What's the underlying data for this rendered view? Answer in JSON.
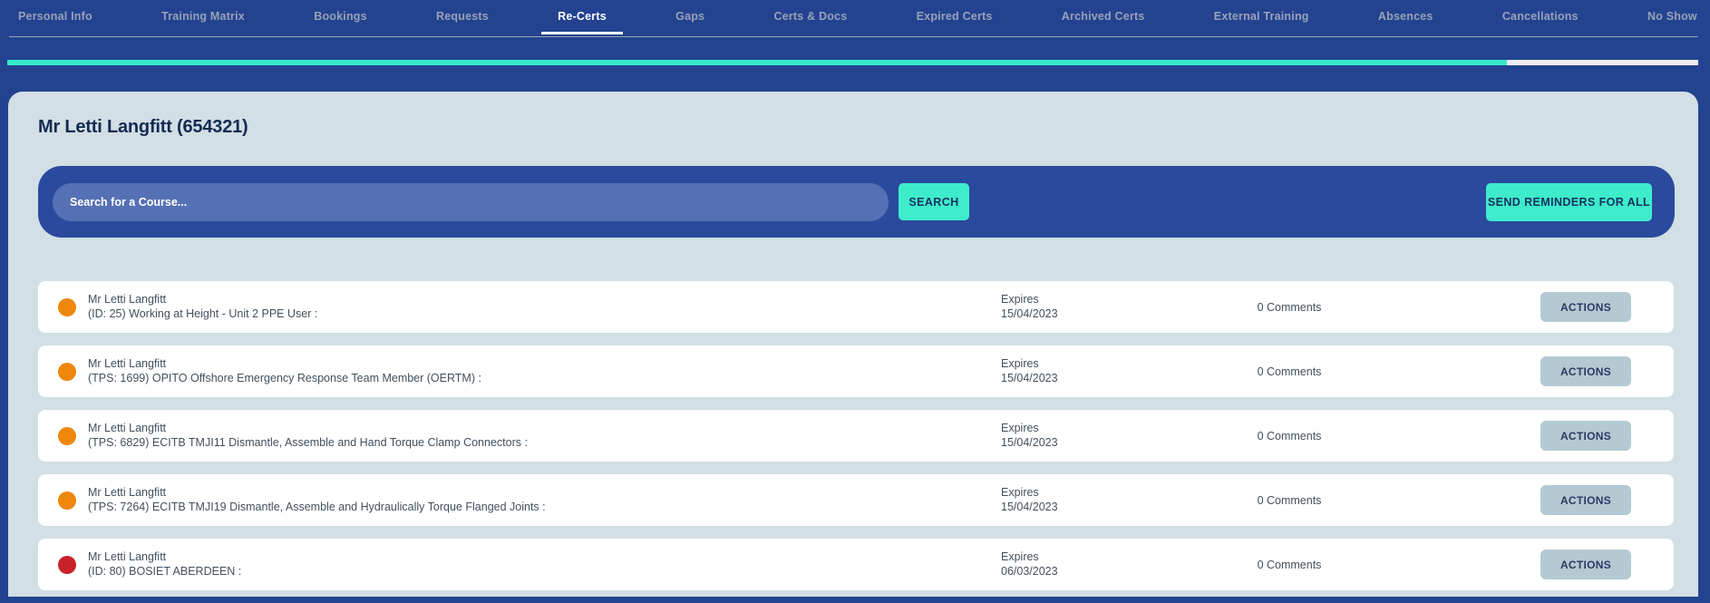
{
  "colors": {
    "chrome_blue": "#234391",
    "search_panel_blue": "#2a4a9e",
    "input_blue": "#5670b5",
    "accent_teal": "#35e9c9",
    "button_teal": "#3eeccb",
    "progress_remainder": "#edeaf3",
    "panel_bg": "#d2dfe4",
    "card_bg": "#ffffff",
    "status_amber": "#ef870d",
    "status_red": "#c92129",
    "actions_button_bg": "#b4cad2",
    "navy_text": "#132a52",
    "row_text": "#42505c",
    "inactive_tab": "#98a2b6"
  },
  "nav": {
    "tabs": [
      {
        "label": "Personal Info",
        "state": ""
      },
      {
        "label": "Training Matrix",
        "state": ""
      },
      {
        "label": "Bookings",
        "state": ""
      },
      {
        "label": "Requests",
        "state": ""
      },
      {
        "label": "Re-Certs",
        "state": "active"
      },
      {
        "label": "Gaps",
        "state": ""
      },
      {
        "label": "Certs & Docs",
        "state": ""
      },
      {
        "label": "Expired Certs",
        "state": ""
      },
      {
        "label": "Archived Certs",
        "state": ""
      },
      {
        "label": "External Training",
        "state": ""
      },
      {
        "label": "Absences",
        "state": ""
      },
      {
        "label": "Cancellations",
        "state": ""
      },
      {
        "label": "No Show",
        "state": ""
      }
    ]
  },
  "progress": {
    "percent": 88.7,
    "percent_css": "88.7%"
  },
  "header": {
    "title": "Mr Letti Langfitt (654321)"
  },
  "search": {
    "placeholder": "Search for a Course...",
    "value": "",
    "search_button": "SEARCH",
    "send_reminders_button": "SEND REMINDERS FOR ALL"
  },
  "labels": {
    "expires": "Expires",
    "actions": "ACTIONS"
  },
  "records": [
    {
      "status": "amber",
      "name": "Mr Letti Langfitt",
      "course": "(ID: 25) Working at Height - Unit 2 PPE User :",
      "expires_date": "15/04/2023",
      "comments": "0 Comments"
    },
    {
      "status": "amber",
      "name": "Mr Letti Langfitt",
      "course": "(TPS: 1699) OPITO Offshore Emergency Response Team Member (OERTM) :",
      "expires_date": "15/04/2023",
      "comments": "0 Comments"
    },
    {
      "status": "amber",
      "name": "Mr Letti Langfitt",
      "course": "(TPS: 6829) ECITB TMJI11 Dismantle, Assemble and Hand Torque Clamp Connectors :",
      "expires_date": "15/04/2023",
      "comments": "0 Comments"
    },
    {
      "status": "amber",
      "name": "Mr Letti Langfitt",
      "course": "(TPS: 7264) ECITB TMJI19 Dismantle, Assemble and Hydraulically Torque Flanged Joints :",
      "expires_date": "15/04/2023",
      "comments": "0 Comments"
    },
    {
      "status": "red",
      "name": "Mr Letti Langfitt",
      "course": "(ID: 80) BOSIET ABERDEEN :",
      "expires_date": "06/03/2023",
      "comments": "0 Comments"
    }
  ]
}
